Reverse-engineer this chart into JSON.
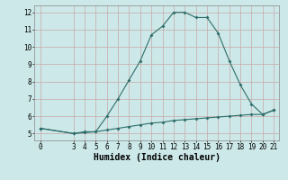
{
  "title": "",
  "xlabel": "Humidex (Indice chaleur)",
  "background_color": "#cce8e8",
  "grid_color_major": "#d8a0a0",
  "grid_color_minor": "#d8c0c0",
  "line_color": "#2e6e6a",
  "line1_x": [
    0,
    3,
    4,
    5,
    6,
    7,
    8,
    9,
    10,
    11,
    12,
    13,
    14,
    15,
    16,
    17,
    18,
    19,
    20,
    21
  ],
  "line1_y": [
    5.3,
    5.0,
    5.1,
    5.1,
    6.0,
    7.0,
    8.1,
    9.2,
    10.7,
    11.2,
    12.0,
    12.0,
    11.7,
    11.7,
    10.8,
    9.2,
    7.8,
    6.7,
    6.1,
    6.35
  ],
  "line2_x": [
    0,
    3,
    4,
    5,
    6,
    7,
    8,
    9,
    10,
    11,
    12,
    13,
    14,
    15,
    16,
    17,
    18,
    19,
    20,
    21
  ],
  "line2_y": [
    5.3,
    5.0,
    5.05,
    5.1,
    5.2,
    5.3,
    5.4,
    5.5,
    5.6,
    5.65,
    5.75,
    5.8,
    5.85,
    5.9,
    5.95,
    6.0,
    6.05,
    6.1,
    6.1,
    6.35
  ],
  "xlim": [
    -0.5,
    21.5
  ],
  "ylim": [
    4.6,
    12.4
  ],
  "xticks": [
    0,
    3,
    4,
    5,
    6,
    7,
    8,
    9,
    10,
    11,
    12,
    13,
    14,
    15,
    16,
    17,
    18,
    19,
    20,
    21
  ],
  "yticks": [
    5,
    6,
    7,
    8,
    9,
    10,
    11,
    12
  ],
  "tick_fontsize": 5.5,
  "xlabel_fontsize": 7.0,
  "marker_size": 2.0,
  "linewidth": 0.8
}
